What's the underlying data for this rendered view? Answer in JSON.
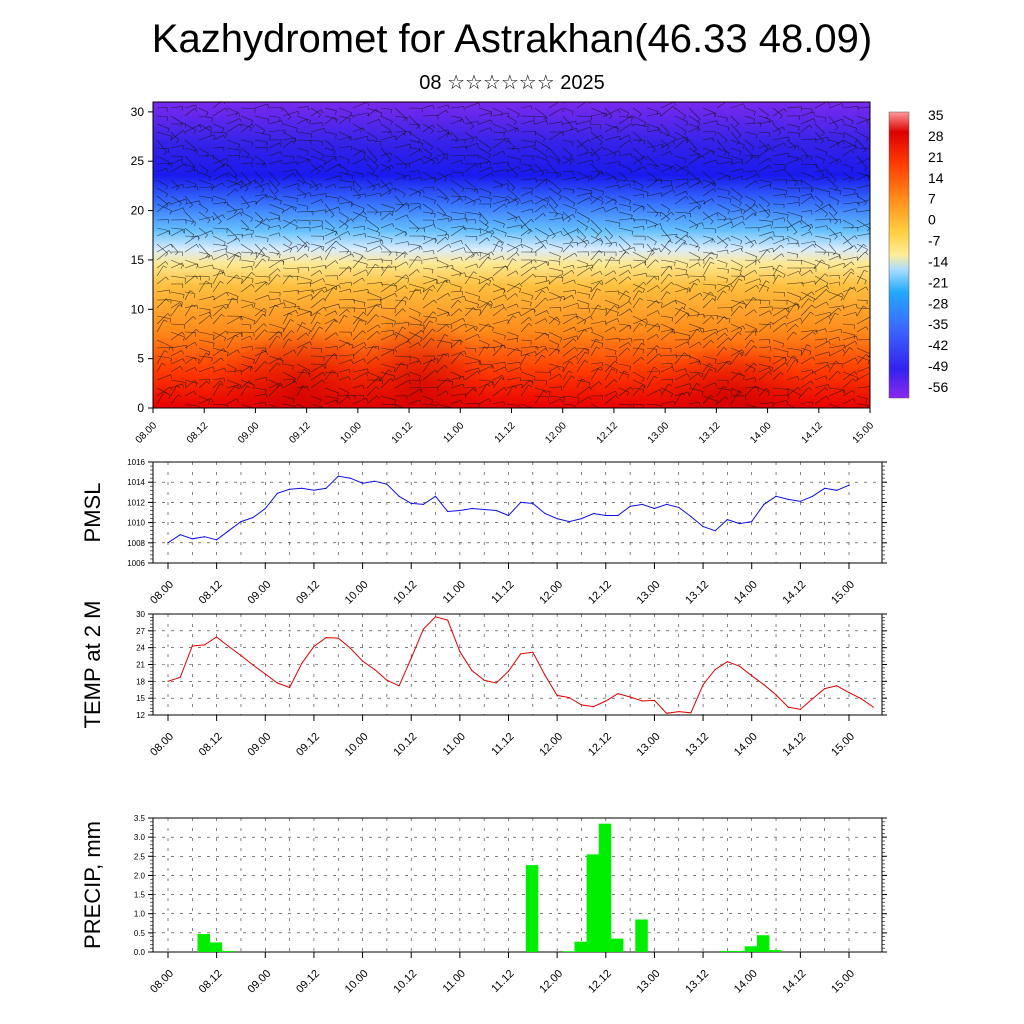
{
  "header": {
    "title": "Kazhydromet for Astrakhan(46.33 48.09)",
    "subtitle": "08 ☆☆☆☆☆☆ 2025"
  },
  "colors": {
    "pmsl": "#1010dd",
    "temp": "#dd0000",
    "precip": "#00ee00",
    "field_stops": [
      "#ee0000",
      "#ff5500",
      "#ffaa22",
      "#ffdd66",
      "#ffeeaa",
      "#aaddff",
      "#33aaff",
      "#4466ff",
      "#2222ee",
      "#7722ee"
    ]
  },
  "chart_data": [
    {
      "type": "heatmap",
      "name": "cross-section",
      "title": "",
      "xlabel": "",
      "ylabel": "",
      "x_ticks": [
        "08.00",
        "08.12",
        "09.00",
        "09.12",
        "10.00",
        "10.12",
        "11.00",
        "11.12",
        "12.00",
        "12.12",
        "13.00",
        "13.12",
        "14.00",
        "14.12",
        "15.00"
      ],
      "y_ticks": [
        "0",
        "5",
        "10",
        "15",
        "20",
        "25",
        "30"
      ],
      "ylim": [
        0,
        31
      ],
      "colorbar_labels": [
        "35",
        "28",
        "21",
        "14",
        "7",
        "0",
        "-7",
        "-14",
        "-21",
        "-28",
        "-35",
        "-42",
        "-49",
        "-56"
      ],
      "notes_overlay": "wind barbs"
    },
    {
      "type": "line",
      "name": "pmsl",
      "ylabel": "PMSL",
      "ylim": [
        1006,
        1016
      ],
      "y_ticks": [
        "1006",
        "1008",
        "1010",
        "1012",
        "1014",
        "1016"
      ],
      "x_ticks": [
        "08.00",
        "08.12",
        "09.00",
        "09.12",
        "10.00",
        "10.12",
        "11.00",
        "11.12",
        "12.00",
        "12.12",
        "13.00",
        "13.12",
        "14.00",
        "14.12",
        "15.00"
      ],
      "values": [
        1008.0,
        1008.8,
        1008.4,
        1008.6,
        1008.3,
        1009.2,
        1010.1,
        1010.5,
        1011.4,
        1012.9,
        1013.3,
        1013.4,
        1013.2,
        1013.4,
        1014.6,
        1014.4,
        1013.9,
        1014.1,
        1013.8,
        1012.6,
        1011.9,
        1011.8,
        1012.6,
        1011.1,
        1011.2,
        1011.4,
        1011.3,
        1011.2,
        1010.7,
        1012.0,
        1011.9,
        1010.9,
        1010.4,
        1010.1,
        1010.4,
        1010.9,
        1010.7,
        1010.7,
        1011.6,
        1011.8,
        1011.4,
        1011.8,
        1011.5,
        1010.6,
        1009.6,
        1009.2,
        1010.3,
        1009.9,
        1010.1,
        1011.8,
        1012.6,
        1012.3,
        1012.1,
        1012.6,
        1013.4,
        1013.2,
        1013.7
      ]
    },
    {
      "type": "line",
      "name": "temp",
      "ylabel": "TEMP at 2 M",
      "ylim": [
        12,
        30
      ],
      "y_ticks": [
        "12",
        "15",
        "18",
        "21",
        "24",
        "27",
        "30"
      ],
      "x_ticks": [
        "08.00",
        "08.12",
        "09.00",
        "09.12",
        "10.00",
        "10.12",
        "11.00",
        "11.12",
        "12.00",
        "12.12",
        "13.00",
        "13.12",
        "14.00",
        "14.12",
        "15.00"
      ],
      "values": [
        18.0,
        18.7,
        24.3,
        24.5,
        25.9,
        24.2,
        22.6,
        20.9,
        19.3,
        17.7,
        16.9,
        21.2,
        24.2,
        25.8,
        25.7,
        23.9,
        21.6,
        20.1,
        18.2,
        17.2,
        22.1,
        27.3,
        29.5,
        28.9,
        23.3,
        19.9,
        18.2,
        17.7,
        19.8,
        22.9,
        23.2,
        19.1,
        15.5,
        15.1,
        13.8,
        13.5,
        14.5,
        15.8,
        15.2,
        14.5,
        14.6,
        12.3,
        12.6,
        12.4,
        17.4,
        20.1,
        21.5,
        20.7,
        19.0,
        17.4,
        15.6,
        13.4,
        13.0,
        14.9,
        16.7,
        17.2,
        16.0,
        14.9,
        13.4
      ]
    },
    {
      "type": "bar",
      "name": "precip",
      "ylabel": "PRECIP, mm",
      "ylim": [
        0,
        3.5
      ],
      "y_ticks": [
        "0.0",
        "0.5",
        "1.0",
        "1.5",
        "2.0",
        "2.5",
        "3.0",
        "3.5"
      ],
      "x_ticks": [
        "08.00",
        "08.12",
        "09.00",
        "09.12",
        "10.00",
        "10.12",
        "11.00",
        "11.12",
        "12.00",
        "12.12",
        "13.00",
        "13.12",
        "14.00",
        "14.12",
        "15.00"
      ],
      "values": [
        0,
        0,
        0,
        0.47,
        0.25,
        0.03,
        0,
        0,
        0,
        0,
        0,
        0,
        0,
        0,
        0,
        0,
        0,
        0,
        0,
        0,
        0,
        0,
        0,
        0,
        0,
        0,
        0,
        0,
        0,
        0,
        2.27,
        0,
        0,
        0.02,
        0.27,
        2.55,
        3.35,
        0.35,
        0,
        0.85,
        0,
        0,
        0,
        0,
        0,
        0,
        0.03,
        0.03,
        0.15,
        0.44,
        0.05,
        0,
        0,
        0,
        0,
        0,
        0
      ]
    }
  ]
}
